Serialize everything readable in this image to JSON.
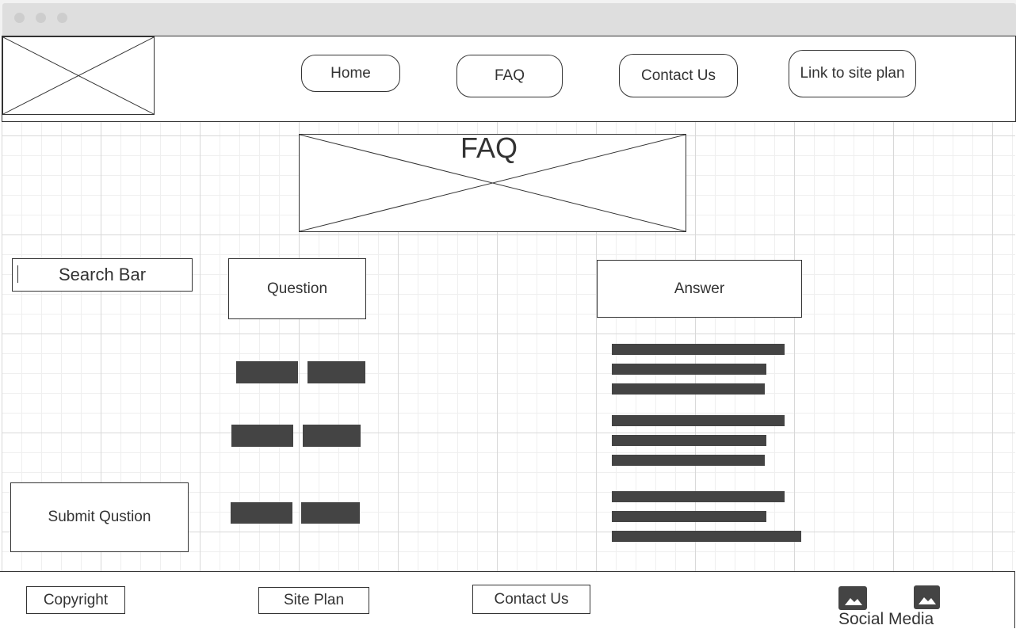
{
  "nav": {
    "home": "Home",
    "faq": "FAQ",
    "contact": "Contact Us",
    "site_plan_link": "Link to site plan"
  },
  "hero": {
    "title": "FAQ"
  },
  "search": {
    "label": "Search Bar"
  },
  "columns": {
    "question": "Question",
    "answer": "Answer"
  },
  "submit": {
    "label": "Submit Qustion"
  },
  "footer": {
    "copyright": "Copyright",
    "site_plan": "Site Plan",
    "contact": "Contact Us",
    "social": "Social Media"
  },
  "colors": {
    "stroke": "#333333",
    "text_block": "#444444",
    "window_bar": "#dedede"
  },
  "icons": [
    "image-placeholder-icon",
    "social-image-icon"
  ]
}
